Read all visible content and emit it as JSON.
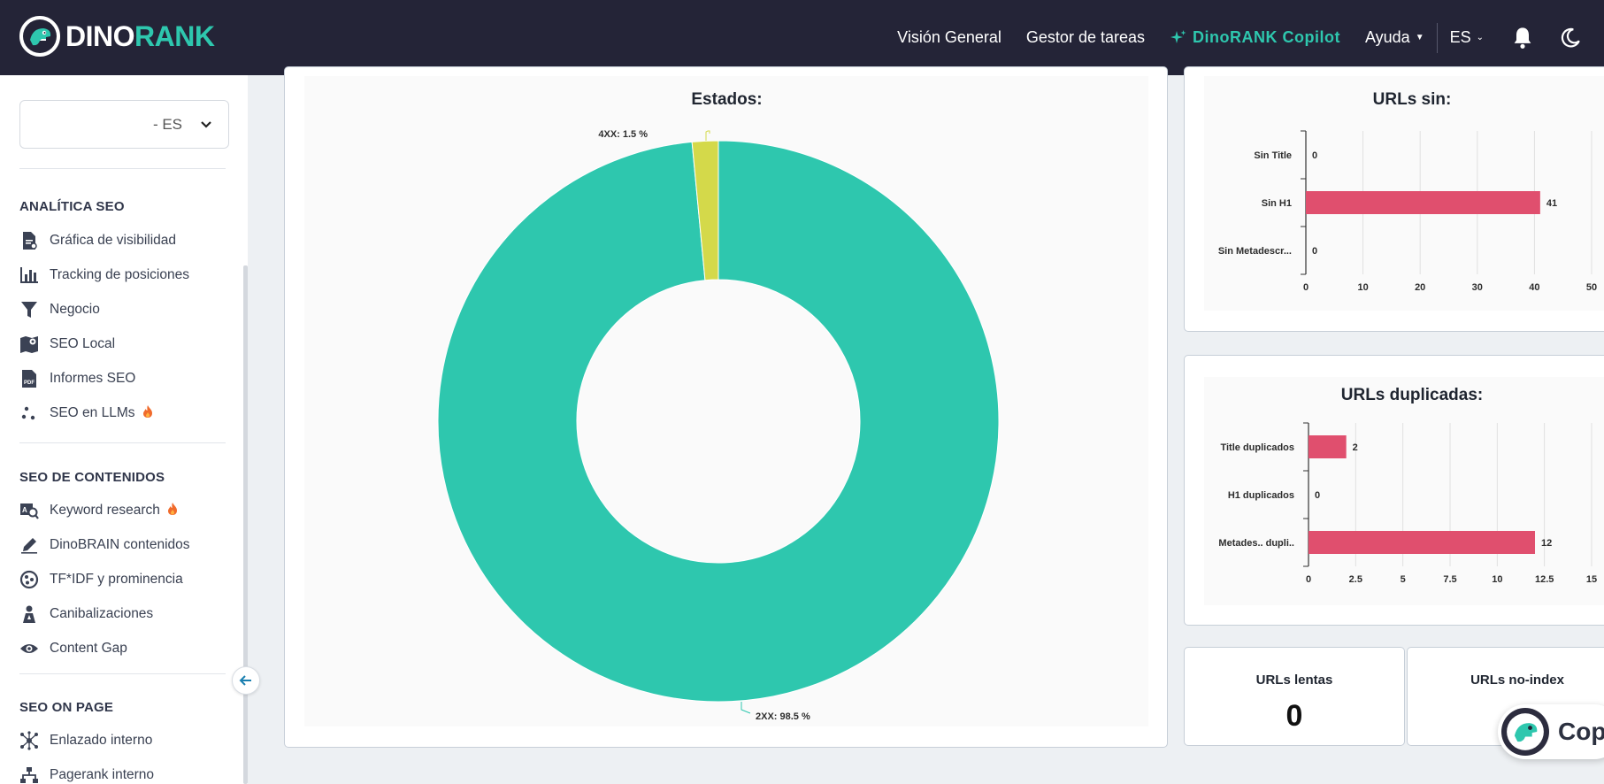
{
  "brand": {
    "name_prefix": "DINO",
    "name_accent": "RANK"
  },
  "nav": {
    "overview": "Visión General",
    "tasks": "Gestor de tareas",
    "copilot": "DinoRANK Copilot",
    "help": "Ayuda",
    "lang": "ES"
  },
  "sidebar": {
    "project_select": "- ES",
    "sections": [
      {
        "title": "ANALÍTICA SEO",
        "items": [
          {
            "label": "Gráfica de visibilidad",
            "icon": "visibility-chart-icon"
          },
          {
            "label": "Tracking de posiciones",
            "icon": "bar-chart-icon"
          },
          {
            "label": "Negocio",
            "icon": "funnel-icon"
          },
          {
            "label": "SEO Local",
            "icon": "map-pin-icon"
          },
          {
            "label": "Informes SEO",
            "icon": "pdf-icon"
          },
          {
            "label": "SEO en LLMs",
            "icon": "llm-dots-icon",
            "hot": true
          }
        ]
      },
      {
        "title": "SEO DE CONTENIDOS",
        "items": [
          {
            "label": "Keyword research",
            "icon": "keyword-search-icon",
            "hot": true
          },
          {
            "label": "DinoBRAIN contenidos",
            "icon": "pen-icon"
          },
          {
            "label": "TF*IDF y prominencia",
            "icon": "tfidf-icon"
          },
          {
            "label": "Canibalizaciones",
            "icon": "cannibal-icon"
          },
          {
            "label": "Content Gap",
            "icon": "eye-icon"
          }
        ]
      },
      {
        "title": "SEO ON PAGE",
        "items": [
          {
            "label": "Enlazado interno",
            "icon": "network-icon"
          },
          {
            "label": "Pagerank interno",
            "icon": "sitemap-icon"
          }
        ]
      }
    ]
  },
  "estados_chart": {
    "title": "Estados:",
    "chart_data": {
      "type": "pie",
      "title": "Estados:",
      "categories": [
        "2XX",
        "4XX"
      ],
      "values": [
        98.5,
        1.5
      ],
      "labels": [
        "2XX: 98.5 %",
        "4XX: 1.5 %"
      ],
      "colors": [
        "#2ec7ae",
        "#d4d94a"
      ]
    }
  },
  "urls_sin_chart": {
    "title": "URLs sin:",
    "chart_data": {
      "type": "bar",
      "orientation": "horizontal",
      "title": "URLs sin:",
      "categories": [
        "Sin Title",
        "Sin H1",
        "Sin Metadescr..."
      ],
      "values": [
        0,
        41,
        0
      ],
      "xlim": [
        0,
        50
      ],
      "ticks": [
        "0",
        "10",
        "20",
        "30",
        "40",
        "50"
      ],
      "color": "#e04f6e"
    }
  },
  "urls_dup_chart": {
    "title": "URLs duplicadas:",
    "chart_data": {
      "type": "bar",
      "orientation": "horizontal",
      "title": "URLs duplicadas:",
      "categories": [
        "Title duplicados",
        "H1 duplicados",
        "Metades.. dupli.."
      ],
      "values": [
        2,
        0,
        12
      ],
      "xlim": [
        0,
        15
      ],
      "ticks": [
        "0",
        "2.5",
        "5",
        "7.5",
        "10",
        "12.5",
        "15"
      ],
      "color": "#e04f6e"
    }
  },
  "stats": {
    "slow_label": "URLs lentas",
    "slow_value": "0",
    "noindex_label": "URLs no-index"
  },
  "copilot_fab": {
    "label": "Copi"
  }
}
